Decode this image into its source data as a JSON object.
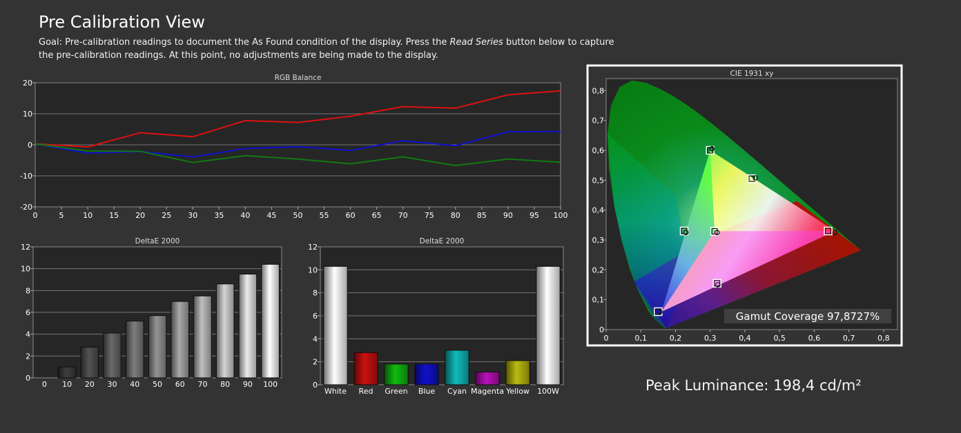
{
  "header": {
    "title": "Pre Calibration View",
    "goal_before": "Goal: Pre-calibration readings to document the As Found condition of the display. Press the ",
    "goal_emph": "Read Series",
    "goal_after": " button below to capture the pre-calibration readings. At this point, no adjustments are being made to the display."
  },
  "peak": {
    "text": "Peak Luminance: 198,4 cd/m²"
  },
  "chart_data": [
    {
      "type": "line",
      "title": "RGB Balance",
      "x": [
        0,
        10,
        20,
        30,
        40,
        50,
        60,
        70,
        80,
        90,
        100
      ],
      "xticks": [
        0,
        5,
        10,
        15,
        20,
        25,
        30,
        35,
        40,
        45,
        50,
        55,
        60,
        65,
        70,
        75,
        80,
        85,
        90,
        95,
        100
      ],
      "yticks": [
        20,
        10,
        0,
        -10,
        -20
      ],
      "xlim": [
        0,
        100
      ],
      "ylim": [
        -20,
        20
      ],
      "series": [
        {
          "color": "#e01010",
          "values": [
            0.3,
            -0.7,
            3.9,
            2.6,
            7.8,
            7.2,
            9.2,
            12.3,
            11.8,
            16.1,
            17.4
          ]
        },
        {
          "color": "#1010d0",
          "values": [
            0.3,
            -2.7,
            -2.2,
            -3.9,
            -1.2,
            -0.6,
            -1.8,
            1.3,
            -0.3,
            4.2,
            4.3
          ]
        },
        {
          "color": "#107a10",
          "values": [
            0.3,
            -2.0,
            -2.1,
            -5.7,
            -3.5,
            -4.6,
            -6.1,
            -3.9,
            -6.7,
            -4.6,
            -5.6
          ]
        }
      ],
      "grid": true
    },
    {
      "type": "bar",
      "title": "DeltaE 2000",
      "categories": [
        "0",
        "10",
        "20",
        "30",
        "40",
        "50",
        "60",
        "70",
        "80",
        "90",
        "100"
      ],
      "values": [
        0,
        1.0,
        2.8,
        4.1,
        5.2,
        5.7,
        7.0,
        7.5,
        8.6,
        9.5,
        10.4
      ],
      "yticks": [
        0,
        2,
        4,
        6,
        8,
        10,
        12
      ],
      "ylim": [
        0,
        12
      ],
      "grid": true
    },
    {
      "type": "bar",
      "title": "DeltaE 2000",
      "categories": [
        "White",
        "Red",
        "Green",
        "Blue",
        "Cyan",
        "Magenta",
        "Yellow",
        "100W"
      ],
      "values": [
        10.3,
        2.8,
        1.8,
        1.8,
        3.0,
        1.1,
        2.1,
        10.3
      ],
      "colors": [
        "#ffffff",
        "#cc1010",
        "#10bb10",
        "#1010cc",
        "#10bbbb",
        "#bb10bb",
        "#bbbb10",
        "#ffffff"
      ],
      "yticks": [
        0,
        2,
        4,
        6,
        8,
        10,
        12
      ],
      "ylim": [
        0,
        12
      ],
      "grid": true
    },
    {
      "type": "scatter",
      "title": "CIE 1931 xy",
      "xticks": [
        "0",
        "0,1",
        "0,2",
        "0,3",
        "0,4",
        "0,5",
        "0,6",
        "0,7",
        "0,8"
      ],
      "yticks": [
        "0",
        "0,1",
        "0,2",
        "0,3",
        "0,4",
        "0,5",
        "0,6",
        "0,7",
        "0,8"
      ],
      "xlim": [
        0,
        0.84
      ],
      "ylim": [
        0,
        0.84
      ],
      "gamut_coverage_text": "Gamut Coverage 97,8727%",
      "gamut_triangle": [
        [
          0.66,
          0.33
        ],
        [
          0.3,
          0.6
        ],
        [
          0.16,
          0.06
        ]
      ],
      "targets": [
        {
          "x": 0.64,
          "y": 0.33
        },
        {
          "x": 0.3,
          "y": 0.6
        },
        {
          "x": 0.15,
          "y": 0.06
        },
        {
          "x": 0.225,
          "y": 0.33
        },
        {
          "x": 0.32,
          "y": 0.155
        },
        {
          "x": 0.42,
          "y": 0.505
        },
        {
          "x": 0.3127,
          "y": 0.329
        }
      ],
      "measured": [
        {
          "x": 0.66,
          "y": 0.325
        },
        {
          "x": 0.305,
          "y": 0.605
        },
        {
          "x": 0.155,
          "y": 0.06
        },
        {
          "x": 0.23,
          "y": 0.325
        },
        {
          "x": 0.322,
          "y": 0.15
        },
        {
          "x": 0.43,
          "y": 0.508
        },
        {
          "x": 0.32,
          "y": 0.325
        }
      ]
    }
  ]
}
